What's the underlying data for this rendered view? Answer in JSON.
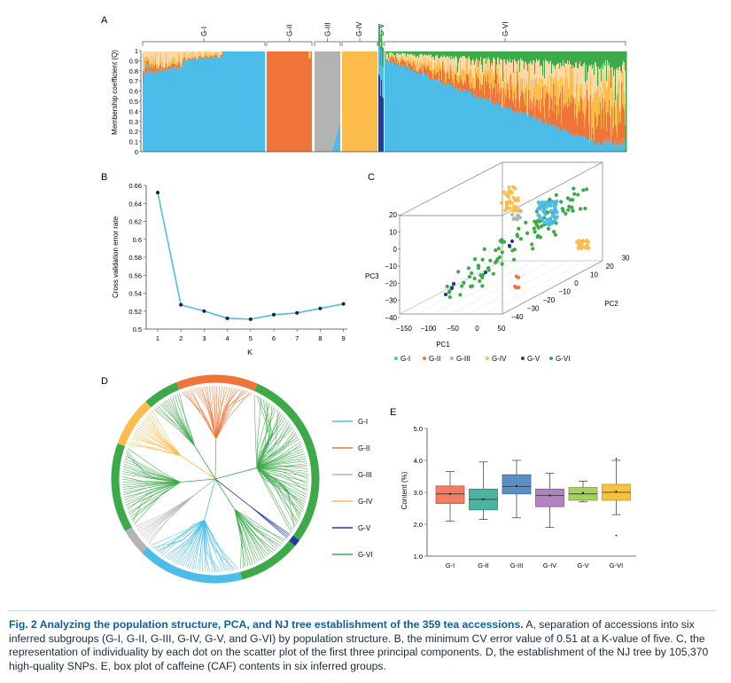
{
  "colors": {
    "G-I": "#4bbde8",
    "G-II": "#f07437",
    "G-III": "#b3b3b3",
    "G-IV": "#fbbc4c",
    "G-V": "#1e3d96",
    "G-VI": "#3daa4a",
    "lightOrange": "#fbd8a6",
    "lineBlue": "#4bbde8"
  },
  "panelA": {
    "label": "A",
    "ylabel": "Membership coefficient (Q)",
    "yticks": [
      "0",
      "0.1",
      "0.2",
      "0.3",
      "0.4",
      "0.5",
      "0.6",
      "0.7",
      "0.8",
      "0.9",
      "1"
    ],
    "groups": [
      "G-I",
      "G-II",
      "G-III",
      "G-IV",
      "G-V",
      "G-VI"
    ]
  },
  "chart_data": [
    {
      "panel": "B",
      "type": "line",
      "title": "",
      "xlabel": "K",
      "ylabel": "Cross validation error rate",
      "x": [
        1,
        2,
        3,
        4,
        5,
        6,
        7,
        8,
        9
      ],
      "values": [
        0.652,
        0.527,
        0.52,
        0.512,
        0.511,
        0.516,
        0.518,
        0.523,
        0.528
      ],
      "ylim": [
        0.5,
        0.66
      ],
      "yticks": [
        "0.5",
        "0.52",
        "0.54",
        "0.56",
        "0.58",
        "0.6",
        "0.62",
        "0.64",
        "0.66"
      ],
      "xticks": [
        "1",
        "2",
        "3",
        "4",
        "5",
        "6",
        "7",
        "8",
        "9"
      ]
    },
    {
      "panel": "E",
      "type": "box",
      "ylabel": "Content (%)",
      "ylim": [
        1.0,
        5.0
      ],
      "yticks": [
        "1.0",
        "2.0",
        "3.0",
        "4.0",
        "5.0"
      ],
      "categories": [
        "G-I",
        "G-II",
        "G-III",
        "G-IV",
        "G-V",
        "G-VI"
      ],
      "boxes": [
        {
          "min": 2.1,
          "q1": 2.65,
          "median": 2.95,
          "q3": 3.2,
          "max": 3.65,
          "mean": 2.95
        },
        {
          "min": 2.15,
          "q1": 2.45,
          "median": 2.78,
          "q3": 3.1,
          "max": 3.95,
          "mean": 2.78
        },
        {
          "min": 2.2,
          "q1": 2.95,
          "median": 3.18,
          "q3": 3.55,
          "max": 4.0,
          "mean": 3.2
        },
        {
          "min": 1.9,
          "q1": 2.55,
          "median": 2.9,
          "q3": 3.1,
          "max": 3.6,
          "mean": 2.9
        },
        {
          "min": 2.7,
          "q1": 2.75,
          "median": 2.95,
          "q3": 3.15,
          "max": 3.35,
          "mean": 2.98
        },
        {
          "min": 2.3,
          "q1": 2.75,
          "median": 3.0,
          "q3": 3.25,
          "max": 4.0,
          "mean": 3.02,
          "outliers": [
            1.65,
            4.05
          ]
        }
      ]
    }
  ],
  "panelC": {
    "label": "C",
    "pc1": "PC1",
    "pc2": "PC2",
    "pc3": "PC3",
    "pc1ticks": [
      "−150",
      "−100",
      "−50",
      "0",
      "50"
    ],
    "pc2ticks": [
      "−40",
      "−30",
      "−20",
      "−10",
      "0",
      "10",
      "20",
      "30"
    ],
    "pc3ticks": [
      "−40",
      "−30",
      "−20",
      "−10",
      "0",
      "10",
      "20"
    ],
    "legend": [
      "G-I",
      "G-II",
      "G-III",
      "G-IV",
      "G-V",
      "G-VI"
    ]
  },
  "panelD": {
    "label": "D",
    "legend": [
      "G-I",
      "G-II",
      "G-III",
      "G-IV",
      "G-V",
      "G-VI"
    ]
  },
  "panelELabel": "E",
  "caption": {
    "title": "Fig. 2  Analyzing the population structure, PCA, and NJ tree establishment of the 359 tea accessions.",
    "body": " A, separation of accessions into six inferred subgroups (G-I, G-II, G-III, G-IV, G-V, and G-VI) by population structure.  B, the minimum CV error value of 0.51 at a K-value of five.  C, the representation of individuality by each dot on the scatter plot of the first three principal components.  D, the establishment of the NJ tree by 105,370 high-quality SNPs.  E, box plot of caffeine (CAF) contents in six inferred groups."
  }
}
